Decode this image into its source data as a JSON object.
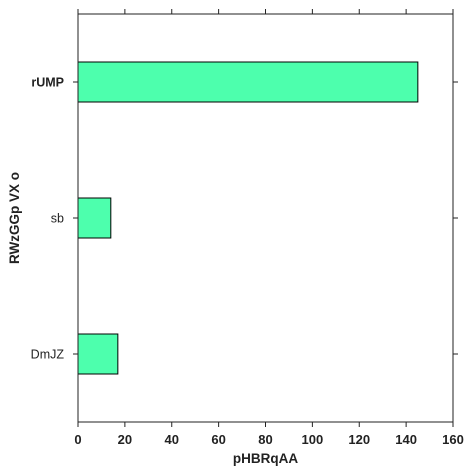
{
  "chart_data": {
    "type": "bar",
    "orientation": "horizontal",
    "categories": [
      "rUMP",
      "sb",
      "DmJZ"
    ],
    "emphasized_categories": [
      "rUMP"
    ],
    "values": [
      145,
      14,
      17
    ],
    "xlabel": "pHBRqAA",
    "ylabel": "RWzGGp VX o",
    "xlim": [
      0,
      160
    ],
    "xticks": [
      0,
      20,
      40,
      60,
      80,
      100,
      120,
      140,
      160
    ],
    "grid": false,
    "legend": "none",
    "colors": {
      "bar_fill": "#4dffad",
      "bar_edge": "#000000",
      "axis": "#222222"
    }
  }
}
